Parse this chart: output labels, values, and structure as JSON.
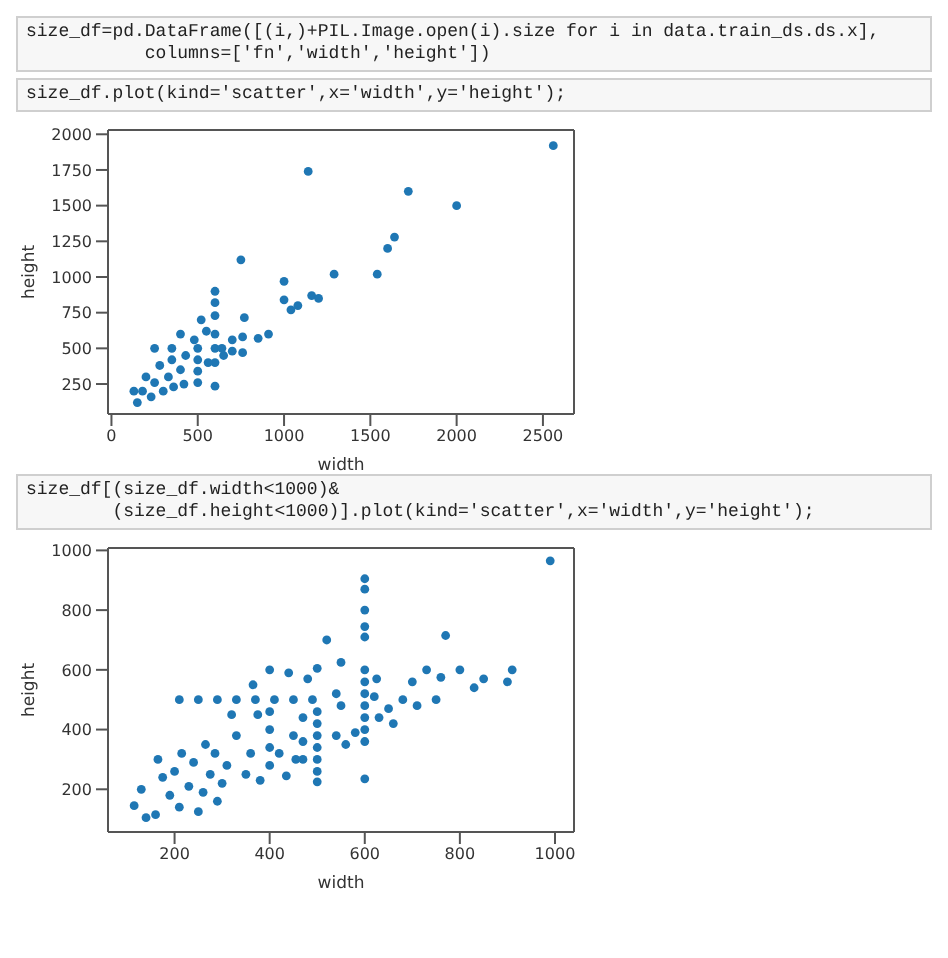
{
  "chart_data": [
    {
      "type": "scatter",
      "annotations": [
        "size_df=pd.DataFrame([(i,)+PIL.Image.open(i).size for i in data.train_ds.ds.x],\n           columns=['fn','width','height'])",
        "size_df.plot(kind='scatter',x='width',y='height');"
      ],
      "xlabel": "width",
      "ylabel": "height",
      "xlim": [
        -20,
        2680
      ],
      "ylim": [
        40,
        2030
      ],
      "xticks": [
        0,
        500,
        1000,
        1500,
        2000,
        2500
      ],
      "yticks": [
        250,
        500,
        750,
        1000,
        1250,
        1500,
        1750,
        2000
      ],
      "grid": false,
      "legend": false,
      "marker": "circle",
      "series": [
        {
          "color": "#1f77b4",
          "x": [
            1140,
            1720,
            2000,
            2560,
            1640,
            1600,
            1540,
            1290,
            1000,
            750,
            1160,
            1200,
            1000,
            1040,
            1080,
            910,
            850,
            770,
            760,
            700,
            650,
            600,
            600,
            600,
            600,
            600,
            600,
            600,
            520,
            550,
            480,
            400,
            350,
            250,
            500,
            500,
            500,
            500,
            430,
            400,
            350,
            330,
            280,
            250,
            200,
            180,
            130,
            150,
            230,
            300,
            420,
            360,
            640,
            700,
            560,
            760
          ],
          "values": [
            1740,
            1600,
            1500,
            1920,
            1280,
            1200,
            1020,
            1020,
            970,
            1120,
            870,
            850,
            840,
            770,
            800,
            600,
            570,
            715,
            580,
            560,
            450,
            900,
            820,
            730,
            600,
            500,
            400,
            235,
            700,
            620,
            560,
            600,
            500,
            500,
            500,
            420,
            340,
            260,
            450,
            350,
            420,
            300,
            380,
            260,
            300,
            200,
            200,
            120,
            160,
            200,
            250,
            230,
            500,
            480,
            400,
            470
          ]
        }
      ]
    },
    {
      "type": "scatter",
      "annotations": [
        "size_df[(size_df.width<1000)&\n        (size_df.height<1000)].plot(kind='scatter',x='width',y='height');"
      ],
      "xlabel": "width",
      "ylabel": "height",
      "xlim": [
        60,
        1040
      ],
      "ylim": [
        57,
        1008
      ],
      "xticks": [
        200,
        400,
        600,
        800,
        1000
      ],
      "yticks": [
        200,
        400,
        600,
        800,
        1000
      ],
      "grid": false,
      "legend": false,
      "marker": "circle",
      "series": [
        {
          "color": "#1f77b4",
          "x": [
            210,
            250,
            290,
            330,
            370,
            410,
            450,
            490,
            500,
            500,
            500,
            500,
            500,
            500,
            500,
            600,
            600,
            600,
            600,
            600,
            600,
            600,
            600,
            600,
            600,
            600,
            600,
            600,
            470,
            470,
            470,
            400,
            400,
            400,
            400,
            115,
            130,
            140,
            160,
            165,
            175,
            190,
            200,
            210,
            215,
            230,
            240,
            250,
            260,
            265,
            275,
            285,
            290,
            300,
            310,
            320,
            330,
            350,
            360,
            375,
            380,
            420,
            435,
            450,
            455,
            365,
            400,
            440,
            480,
            500,
            520,
            540,
            550,
            550,
            540,
            560,
            580,
            625,
            620,
            630,
            650,
            660,
            680,
            700,
            710,
            730,
            750,
            760,
            770,
            800,
            830,
            850,
            900,
            910,
            990
          ],
          "values": [
            500,
            500,
            500,
            500,
            500,
            500,
            500,
            500,
            460,
            420,
            380,
            340,
            300,
            260,
            225,
            905,
            870,
            800,
            745,
            710,
            600,
            560,
            520,
            480,
            440,
            400,
            360,
            235,
            440,
            360,
            300,
            460,
            400,
            340,
            280,
            145,
            200,
            105,
            115,
            300,
            240,
            180,
            260,
            140,
            320,
            210,
            290,
            125,
            190,
            350,
            250,
            320,
            160,
            220,
            280,
            450,
            380,
            250,
            320,
            450,
            230,
            320,
            245,
            380,
            300,
            550,
            600,
            590,
            570,
            605,
            700,
            520,
            625,
            480,
            380,
            350,
            390,
            570,
            510,
            440,
            470,
            420,
            500,
            560,
            480,
            600,
            500,
            575,
            715,
            600,
            540,
            570,
            560,
            600,
            965
          ]
        }
      ]
    }
  ]
}
